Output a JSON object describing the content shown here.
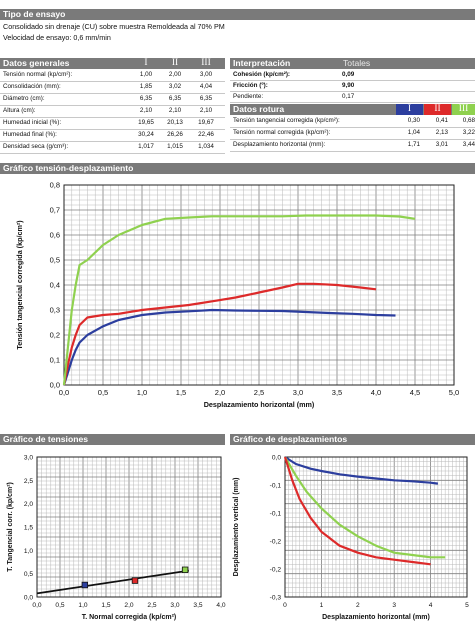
{
  "ensayo": {
    "title": "Tipo de ensayo",
    "line1": "Consolidado sin drenaje (CU) sobre muestra Remoldeada al 70% PM",
    "line2": "Velocidad de ensayo: 0,6 mm/min"
  },
  "datos": {
    "title": "Datos generales",
    "cols": [
      "I",
      "II",
      "III"
    ],
    "rows": [
      {
        "label": "Tensión normal (kp/cm²):",
        "v": [
          "1,00",
          "2,00",
          "3,00"
        ]
      },
      {
        "label": "Consolidación (mm):",
        "v": [
          "1,85",
          "3,02",
          "4,04"
        ]
      },
      {
        "label": "Diámetro (cm):",
        "v": [
          "6,35",
          "6,35",
          "6,35"
        ]
      },
      {
        "label": "Altura (cm):",
        "v": [
          "2,10",
          "2,10",
          "2,10"
        ]
      },
      {
        "label": "Humedad inicial (%):",
        "v": [
          "19,65",
          "20,13",
          "19,67"
        ]
      },
      {
        "label": "Humedad final (%):",
        "v": [
          "30,24",
          "26,26",
          "22,46"
        ]
      },
      {
        "label": "Densidad seca (g/cm³):",
        "v": [
          "1,017",
          "1,015",
          "1,034"
        ]
      }
    ]
  },
  "interp": {
    "title": "Interpretación",
    "totales": "Totales",
    "rows": [
      {
        "label": "Cohesión (kp/cm²):",
        "v": "0,09"
      },
      {
        "label": "Fricción (º):",
        "v": "9,90"
      },
      {
        "label": "Pendiente:",
        "v": "0,17"
      }
    ]
  },
  "rotura": {
    "title": "Datos rotura",
    "cols": [
      "I",
      "II",
      "III"
    ],
    "colors": [
      "#2c3e9e",
      "#dd2a2a",
      "#8fd14f"
    ],
    "rows": [
      {
        "label": "Tensión tangencial corregida (kp/cm²):",
        "v": [
          "0,30",
          "0,41",
          "0,68"
        ]
      },
      {
        "label": "Tensión normal corregida (kp/cm²):",
        "v": [
          "1,04",
          "2,13",
          "3,22"
        ]
      },
      {
        "label": "Desplazamiento horizontal (mm):",
        "v": [
          "1,71",
          "3,01",
          "3,44"
        ]
      }
    ]
  },
  "chart_titles": {
    "main": "Gráfico tensión-desplazamiento",
    "tensiones": "Gráfico de tensiones",
    "desplaz": "Gráfico de desplazamientos"
  },
  "chart_data": [
    {
      "type": "line",
      "title": "Gráfico tensión-desplazamiento",
      "xlabel": "Desplazamiento horizontal (mm)",
      "ylabel": "Tensión tangencial corregida (kp/cm²)",
      "xlim": [
        0,
        5
      ],
      "ylim": [
        0,
        0.8
      ],
      "xticks": [
        "0,0",
        "0,5",
        "1,0",
        "1,5",
        "2,0",
        "2,5",
        "3,0",
        "3,5",
        "4,0",
        "4,5",
        "5,0"
      ],
      "yticks": [
        "0,0",
        "0,1",
        "0,2",
        "0,3",
        "0,4",
        "0,5",
        "0,6",
        "0,7",
        "0,8"
      ],
      "series": [
        {
          "color": "#2c3e9e",
          "x": [
            0,
            0.05,
            0.1,
            0.15,
            0.2,
            0.3,
            0.5,
            0.7,
            1.0,
            1.3,
            1.6,
            1.9,
            2.2,
            2.5,
            2.8,
            3.1,
            3.4,
            3.7,
            4.0,
            4.25
          ],
          "y": [
            0,
            0.05,
            0.1,
            0.14,
            0.17,
            0.2,
            0.235,
            0.26,
            0.28,
            0.29,
            0.295,
            0.3,
            0.298,
            0.297,
            0.296,
            0.292,
            0.288,
            0.285,
            0.28,
            0.278
          ]
        },
        {
          "color": "#dd2a2a",
          "x": [
            0,
            0.05,
            0.1,
            0.15,
            0.2,
            0.3,
            0.5,
            0.7,
            1.0,
            1.3,
            1.6,
            1.9,
            2.2,
            2.5,
            2.8,
            3.0,
            3.2,
            3.5,
            3.8,
            4.0
          ],
          "y": [
            0,
            0.08,
            0.15,
            0.2,
            0.24,
            0.27,
            0.28,
            0.285,
            0.3,
            0.31,
            0.32,
            0.335,
            0.35,
            0.37,
            0.39,
            0.405,
            0.405,
            0.4,
            0.39,
            0.383
          ]
        },
        {
          "color": "#8fd14f",
          "x": [
            0,
            0.05,
            0.1,
            0.15,
            0.2,
            0.3,
            0.5,
            0.7,
            1.0,
            1.3,
            1.6,
            1.9,
            2.2,
            2.5,
            2.8,
            3.1,
            3.4,
            3.7,
            4.0,
            4.3,
            4.5
          ],
          "y": [
            0,
            0.15,
            0.3,
            0.4,
            0.48,
            0.5,
            0.56,
            0.6,
            0.64,
            0.665,
            0.67,
            0.675,
            0.675,
            0.675,
            0.675,
            0.678,
            0.678,
            0.678,
            0.678,
            0.674,
            0.665
          ]
        }
      ]
    },
    {
      "type": "scatter",
      "title": "Gráfico de tensiones",
      "xlabel": "T. Normal corregida  (kp/cm²)",
      "ylabel": "T. Tangencial corr. (kp/cm²)",
      "xlim": [
        0,
        4
      ],
      "ylim": [
        0,
        3.5
      ],
      "xticks": [
        "0,0",
        "0,5",
        "1,0",
        "1,5",
        "2,0",
        "2,5",
        "3,0",
        "3,5",
        "4,0"
      ],
      "yticks": [
        "0,0",
        "0,5",
        "1,0",
        "1,5",
        "2,0",
        "2,5",
        "3,0"
      ],
      "points": [
        {
          "x": 1.04,
          "y": 0.3,
          "color": "#2c3e9e"
        },
        {
          "x": 2.13,
          "y": 0.41,
          "color": "#dd2a2a"
        },
        {
          "x": 3.22,
          "y": 0.68,
          "color": "#8fd14f"
        }
      ],
      "fit_line": {
        "x": [
          0,
          3.3
        ],
        "y": [
          0.09,
          0.66
        ]
      }
    },
    {
      "type": "line",
      "title": "Gráfico de desplazamientos",
      "xlabel": "Desplazamiento horizontal (mm)",
      "ylabel": "Desplazamiento vertical (mm)",
      "xlim": [
        0,
        5
      ],
      "ylim": [
        -0.3,
        0
      ],
      "xticks": [
        "0",
        "1",
        "2",
        "3",
        "4",
        "5"
      ],
      "yticks": [
        "0,0",
        "-0,1",
        "-0,1",
        "-0,2",
        "-0,2",
        "-0,3"
      ],
      "series": [
        {
          "color": "#2c3e9e",
          "x": [
            0,
            0.3,
            0.7,
            1.0,
            1.5,
            2.0,
            2.5,
            3.0,
            3.5,
            4.0,
            4.2
          ],
          "y": [
            0,
            -0.015,
            -0.025,
            -0.03,
            -0.037,
            -0.042,
            -0.046,
            -0.05,
            -0.052,
            -0.055,
            -0.057
          ]
        },
        {
          "color": "#8fd14f",
          "x": [
            0,
            0.3,
            0.6,
            1.0,
            1.5,
            2.0,
            2.5,
            3.0,
            3.5,
            4.0,
            4.4
          ],
          "y": [
            0,
            -0.04,
            -0.075,
            -0.11,
            -0.145,
            -0.17,
            -0.19,
            -0.205,
            -0.21,
            -0.215,
            -0.215
          ]
        },
        {
          "color": "#dd2a2a",
          "x": [
            0,
            0.2,
            0.4,
            0.7,
            1.0,
            1.5,
            2.0,
            2.5,
            3.0,
            3.5,
            4.0
          ],
          "y": [
            0,
            -0.05,
            -0.09,
            -0.13,
            -0.16,
            -0.19,
            -0.205,
            -0.215,
            -0.22,
            -0.225,
            -0.23
          ]
        }
      ]
    }
  ]
}
